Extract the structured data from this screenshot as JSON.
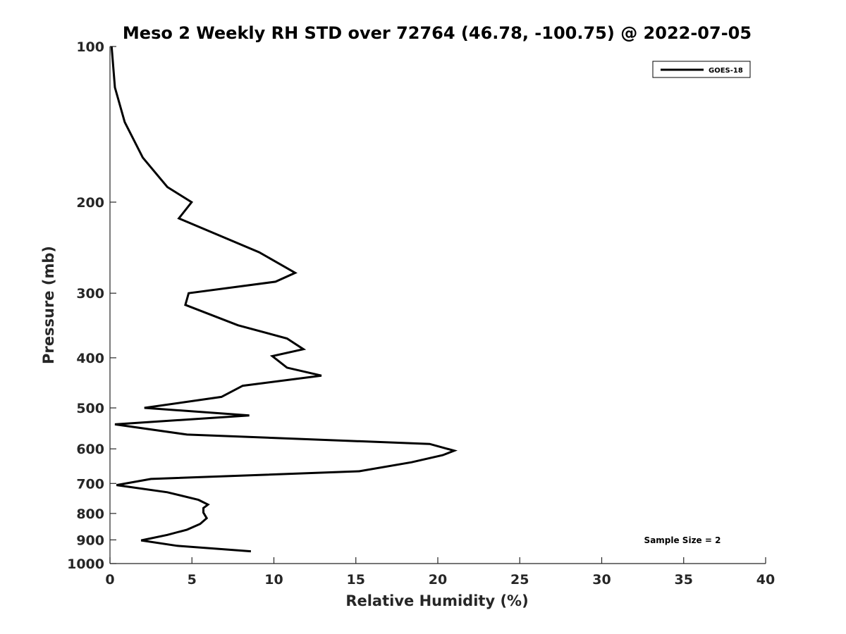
{
  "chart_data": {
    "type": "line",
    "title": "Meso 2 Weekly RH STD over 72764 (46.78, -100.75) @ 2022-07-05",
    "xlabel": "Relative Humidity (%)",
    "ylabel": "Pressure (mb)",
    "xlim": [
      0,
      40
    ],
    "ylim": [
      1000,
      100
    ],
    "yscale": "log",
    "x_ticks": [
      0,
      5,
      10,
      15,
      20,
      25,
      30,
      35,
      40
    ],
    "y_ticks": [
      100,
      200,
      300,
      400,
      500,
      600,
      700,
      800,
      900,
      1000
    ],
    "grid": false,
    "legend": {
      "position": "top-right",
      "entries": [
        "GOES-18"
      ]
    },
    "annotation": "Sample Size = 2",
    "series": [
      {
        "name": "GOES-18",
        "color": "#000000",
        "points": [
          [
            0.1,
            100
          ],
          [
            0.3,
            120
          ],
          [
            0.9,
            140
          ],
          [
            2.0,
            164
          ],
          [
            3.5,
            187
          ],
          [
            4.98,
            200
          ],
          [
            4.2,
            215
          ],
          [
            9.1,
            250
          ],
          [
            11.3,
            274
          ],
          [
            10.1,
            285
          ],
          [
            4.8,
            300
          ],
          [
            4.6,
            316
          ],
          [
            7.8,
            346
          ],
          [
            10.8,
            367
          ],
          [
            11.8,
            385
          ],
          [
            9.9,
            397
          ],
          [
            10.8,
            418
          ],
          [
            12.9,
            433
          ],
          [
            8.1,
            453
          ],
          [
            6.8,
            476
          ],
          [
            2.1,
            500
          ],
          [
            8.5,
            517
          ],
          [
            0.3,
            538
          ],
          [
            4.7,
            563
          ],
          [
            19.5,
            587
          ],
          [
            21.0,
            605
          ],
          [
            20.3,
            617
          ],
          [
            18.4,
            637
          ],
          [
            15.2,
            663
          ],
          [
            2.5,
            686
          ],
          [
            0.4,
            705
          ],
          [
            3.5,
            728
          ],
          [
            5.4,
            753
          ],
          [
            5.98,
            769
          ],
          [
            5.7,
            781
          ],
          [
            5.7,
            797
          ],
          [
            5.9,
            817
          ],
          [
            5.5,
            838
          ],
          [
            4.7,
            860
          ],
          [
            3.5,
            880
          ],
          [
            1.9,
            902
          ],
          [
            4.1,
            924
          ],
          [
            8.6,
            947
          ]
        ]
      }
    ]
  }
}
